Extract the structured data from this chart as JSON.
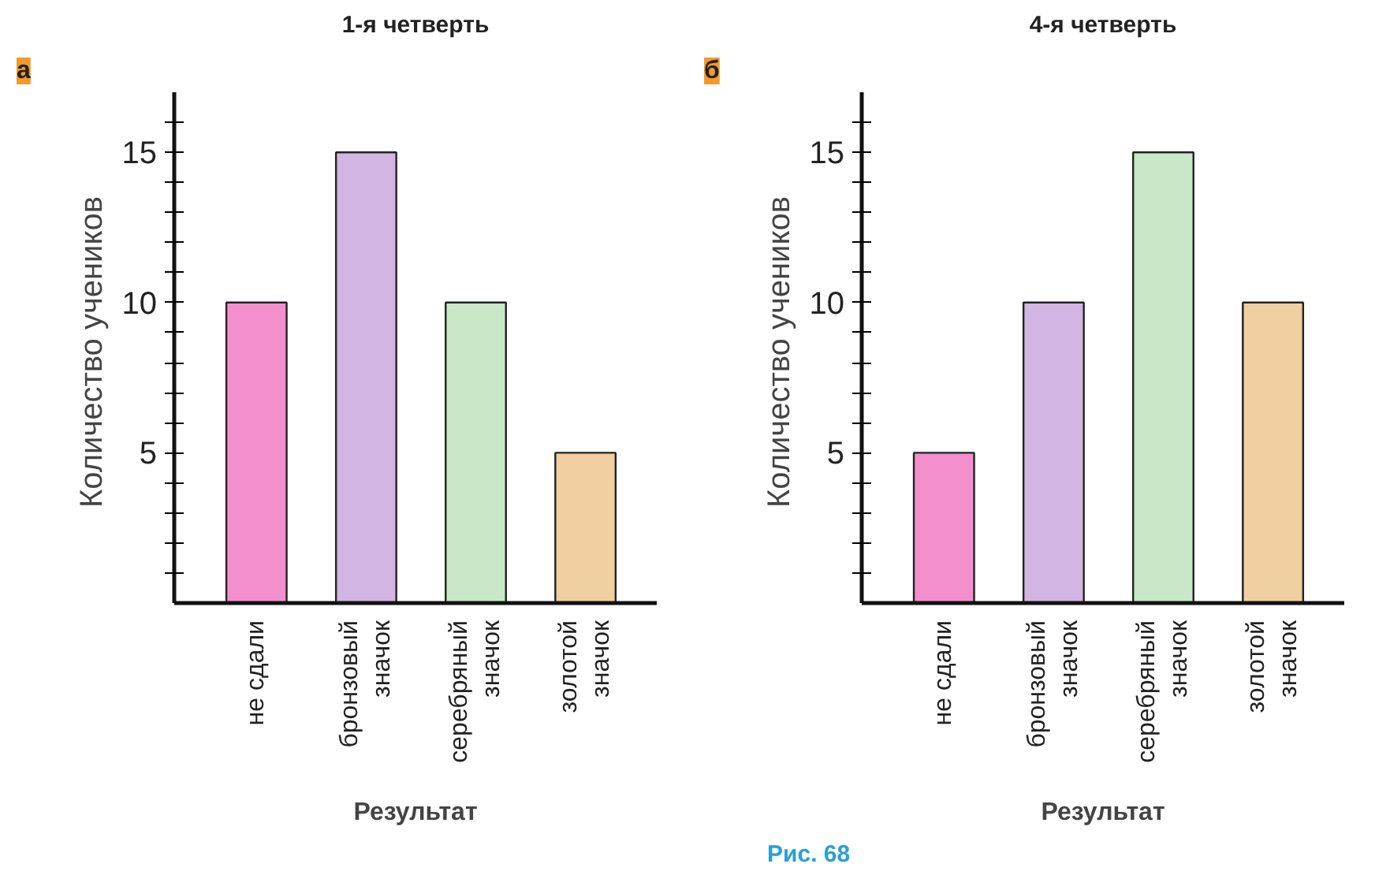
{
  "chart_data": [
    {
      "type": "bar",
      "title": "1-я четверть",
      "xlabel": "Результат",
      "ylabel": "Количество  учеников",
      "annotations": [
        "а"
      ],
      "categories": [
        "не сдали",
        "бронзовый\nзначок",
        "серебряный\nзначок",
        "золотой\nзначок"
      ],
      "values": [
        10,
        15,
        10,
        5
      ],
      "colors": [
        "#f28fcc",
        "#d2b5e3",
        "#c8e8c8",
        "#f0cfa0"
      ],
      "ylim": [
        0,
        17
      ],
      "yticks": [
        {
          "value": 1,
          "label": null
        },
        {
          "value": 2,
          "label": null
        },
        {
          "value": 3,
          "label": null
        },
        {
          "value": 4,
          "label": null
        },
        5,
        {
          "value": 6,
          "label": null
        },
        {
          "value": 7,
          "label": null
        },
        {
          "value": 8,
          "label": null
        },
        {
          "value": 9,
          "label": null
        },
        10,
        {
          "value": 11,
          "label": null
        },
        {
          "value": 12,
          "label": null
        },
        {
          "value": 13,
          "label": null
        },
        {
          "value": 14,
          "label": null
        },
        15,
        {
          "value": 16,
          "label": null
        }
      ],
      "grid": false
    },
    {
      "type": "bar",
      "title": "4-я четверть",
      "xlabel": "Результат",
      "ylabel": "Количество  учеников",
      "annotations": [
        "б",
        "Рис. 68"
      ],
      "categories": [
        "не сдали",
        "бронзовый\nзначок",
        "серебряный\nзначок",
        "золотой\nзначок"
      ],
      "values": [
        5,
        10,
        15,
        10
      ],
      "colors": [
        "#f28fcc",
        "#d2b5e3",
        "#c8e8c8",
        "#f0cfa0"
      ],
      "ylim": [
        0,
        17
      ],
      "yticks": [
        {
          "value": 1,
          "label": null
        },
        {
          "value": 2,
          "label": null
        },
        {
          "value": 3,
          "label": null
        },
        {
          "value": 4,
          "label": null
        },
        5,
        {
          "value": 6,
          "label": null
        },
        {
          "value": 7,
          "label": null
        },
        {
          "value": 8,
          "label": null
        },
        {
          "value": 9,
          "label": null
        },
        10,
        {
          "value": 11,
          "label": null
        },
        {
          "value": 12,
          "label": null
        },
        {
          "value": 13,
          "label": null
        },
        {
          "value": 14,
          "label": null
        },
        15,
        {
          "value": 16,
          "label": null
        }
      ],
      "grid": false
    }
  ]
}
